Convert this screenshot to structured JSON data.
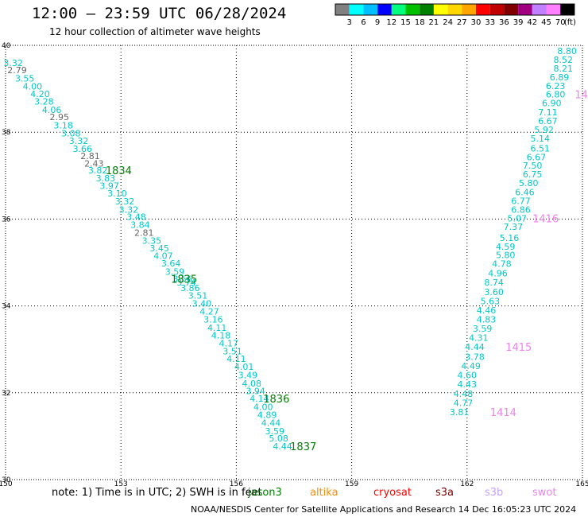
{
  "chart_data": {
    "type": "scatter",
    "title": "12:00 – 23:59 UTC 06/28/2024",
    "subtitle": "12 hour collection of altimeter wave heights",
    "xlim": [
      150,
      165
    ],
    "ylim": [
      30,
      40
    ],
    "x_ticks": [
      "150",
      "153",
      "156",
      "159",
      "162",
      "165"
    ],
    "y_ticks": [
      "30",
      "32",
      "34",
      "36",
      "38",
      "40"
    ],
    "grid": true,
    "colorbar": {
      "unit": "(ft)",
      "labels": [
        "3",
        "6",
        "9",
        "12",
        "15",
        "18",
        "21",
        "24",
        "27",
        "30",
        "33",
        "36",
        "39",
        "42",
        "45",
        "70"
      ],
      "colors": [
        "#808080",
        "#00ffff",
        "#00bfff",
        "#0000ff",
        "#00ff7f",
        "#00c000",
        "#008000",
        "#ffff00",
        "#ffd700",
        "#ffa500",
        "#ff0000",
        "#c00000",
        "#800000",
        "#a00080",
        "#c080ff",
        "#ff80ff",
        "#000000"
      ]
    },
    "series": [
      {
        "name": "jason3",
        "color_main": "#00c8c8",
        "color_low": "#666666",
        "points": [
          {
            "x": 150.2,
            "y": 39.6,
            "v": "3.32"
          },
          {
            "x": 150.3,
            "y": 39.43,
            "v": "2.79"
          },
          {
            "x": 150.5,
            "y": 39.24,
            "v": "3.55"
          },
          {
            "x": 150.7,
            "y": 39.06,
            "v": "4.00"
          },
          {
            "x": 150.9,
            "y": 38.88,
            "v": "4.20"
          },
          {
            "x": 151.0,
            "y": 38.71,
            "v": "3.28"
          },
          {
            "x": 151.2,
            "y": 38.52,
            "v": "4.06"
          },
          {
            "x": 151.4,
            "y": 38.35,
            "v": "2.95"
          },
          {
            "x": 151.5,
            "y": 38.16,
            "v": "3.18"
          },
          {
            "x": 151.7,
            "y": 37.98,
            "v": "3.08"
          },
          {
            "x": 151.9,
            "y": 37.8,
            "v": "3.32"
          },
          {
            "x": 152.0,
            "y": 37.62,
            "v": "3.66"
          },
          {
            "x": 152.2,
            "y": 37.45,
            "v": "2.81"
          },
          {
            "x": 152.3,
            "y": 37.28,
            "v": "2.43"
          },
          {
            "x": 152.4,
            "y": 37.12,
            "v": "3.82"
          },
          {
            "x": 152.6,
            "y": 36.94,
            "v": "3.83"
          },
          {
            "x": 152.7,
            "y": 36.77,
            "v": "3.97"
          },
          {
            "x": 152.9,
            "y": 36.59,
            "v": "3.10"
          },
          {
            "x": 153.1,
            "y": 36.41,
            "v": "3.32"
          },
          {
            "x": 153.2,
            "y": 36.22,
            "v": "3.32"
          },
          {
            "x": 153.4,
            "y": 36.05,
            "v": "3.48"
          },
          {
            "x": 153.5,
            "y": 35.87,
            "v": "3.84"
          },
          {
            "x": 153.6,
            "y": 35.69,
            "v": "2.81"
          },
          {
            "x": 153.8,
            "y": 35.5,
            "v": "3.35"
          },
          {
            "x": 154.0,
            "y": 35.33,
            "v": "3.45"
          },
          {
            "x": 154.1,
            "y": 35.16,
            "v": "4.07"
          },
          {
            "x": 154.3,
            "y": 34.98,
            "v": "3.64"
          },
          {
            "x": 154.4,
            "y": 34.79,
            "v": "3.59"
          },
          {
            "x": 154.6,
            "y": 34.62,
            "v": "3.56"
          },
          {
            "x": 154.7,
            "y": 34.54,
            "v": "3.74"
          },
          {
            "x": 154.8,
            "y": 34.41,
            "v": "3.86"
          },
          {
            "x": 155.0,
            "y": 34.24,
            "v": "3.51"
          },
          {
            "x": 155.1,
            "y": 34.06,
            "v": "3.40"
          },
          {
            "x": 155.3,
            "y": 33.87,
            "v": "4.27"
          },
          {
            "x": 155.4,
            "y": 33.69,
            "v": "3.16"
          },
          {
            "x": 155.5,
            "y": 33.5,
            "v": "4.11"
          },
          {
            "x": 155.6,
            "y": 33.32,
            "v": "4.18"
          },
          {
            "x": 155.8,
            "y": 33.14,
            "v": "4.17"
          },
          {
            "x": 155.9,
            "y": 32.96,
            "v": "3.51"
          },
          {
            "x": 156.0,
            "y": 32.78,
            "v": "4.11"
          },
          {
            "x": 156.2,
            "y": 32.6,
            "v": "4.01"
          },
          {
            "x": 156.3,
            "y": 32.41,
            "v": "3.49"
          },
          {
            "x": 156.4,
            "y": 32.22,
            "v": "4.08"
          },
          {
            "x": 156.5,
            "y": 32.04,
            "v": "3.94"
          },
          {
            "x": 156.6,
            "y": 31.87,
            "v": "4.14"
          },
          {
            "x": 156.7,
            "y": 31.68,
            "v": "4.00"
          },
          {
            "x": 156.8,
            "y": 31.49,
            "v": "4.89"
          },
          {
            "x": 156.9,
            "y": 31.31,
            "v": "4.44"
          },
          {
            "x": 157.0,
            "y": 31.12,
            "v": "3.59"
          },
          {
            "x": 157.1,
            "y": 30.95,
            "v": "5.08"
          },
          {
            "x": 157.2,
            "y": 30.77,
            "v": "4.44"
          }
        ]
      },
      {
        "name": "swot",
        "color_main": "#00c8c8",
        "color_low": "#666666",
        "points": [
          {
            "x": 164.6,
            "y": 39.87,
            "v": "8.80"
          },
          {
            "x": 164.5,
            "y": 39.67,
            "v": "8.52"
          },
          {
            "x": 164.5,
            "y": 39.47,
            "v": "8.21"
          },
          {
            "x": 164.4,
            "y": 39.27,
            "v": "6.89"
          },
          {
            "x": 164.3,
            "y": 39.07,
            "v": "6.23"
          },
          {
            "x": 164.3,
            "y": 38.87,
            "v": "6.80"
          },
          {
            "x": 164.2,
            "y": 38.67,
            "v": "6.90"
          },
          {
            "x": 164.1,
            "y": 38.46,
            "v": "7.11"
          },
          {
            "x": 164.1,
            "y": 38.26,
            "v": "6.67"
          },
          {
            "x": 164.0,
            "y": 38.06,
            "v": "5.92"
          },
          {
            "x": 163.9,
            "y": 37.86,
            "v": "5.14"
          },
          {
            "x": 163.9,
            "y": 37.63,
            "v": "6.51"
          },
          {
            "x": 163.8,
            "y": 37.43,
            "v": "6.67"
          },
          {
            "x": 163.7,
            "y": 37.23,
            "v": "7.50"
          },
          {
            "x": 163.7,
            "y": 37.03,
            "v": "6.75"
          },
          {
            "x": 163.6,
            "y": 36.83,
            "v": "5.80"
          },
          {
            "x": 163.5,
            "y": 36.62,
            "v": "6.46"
          },
          {
            "x": 163.4,
            "y": 36.42,
            "v": "6.77"
          },
          {
            "x": 163.4,
            "y": 36.22,
            "v": "6.86"
          },
          {
            "x": 163.3,
            "y": 36.02,
            "v": "5.07"
          },
          {
            "x": 163.2,
            "y": 35.82,
            "v": "7.37"
          },
          {
            "x": 163.1,
            "y": 35.57,
            "v": "5.16"
          },
          {
            "x": 163.0,
            "y": 35.37,
            "v": "4.59"
          },
          {
            "x": 163.0,
            "y": 35.17,
            "v": "5.80"
          },
          {
            "x": 162.9,
            "y": 34.97,
            "v": "4.78"
          },
          {
            "x": 162.8,
            "y": 34.75,
            "v": "4.96"
          },
          {
            "x": 162.7,
            "y": 34.54,
            "v": "8.74"
          },
          {
            "x": 162.7,
            "y": 34.32,
            "v": "3.60"
          },
          {
            "x": 162.6,
            "y": 34.11,
            "v": "5.63"
          },
          {
            "x": 162.5,
            "y": 33.9,
            "v": "4.46"
          },
          {
            "x": 162.5,
            "y": 33.69,
            "v": "4.83"
          },
          {
            "x": 162.4,
            "y": 33.48,
            "v": "3.59"
          },
          {
            "x": 162.3,
            "y": 33.27,
            "v": "4.31"
          },
          {
            "x": 162.2,
            "y": 33.06,
            "v": "4.44"
          },
          {
            "x": 162.2,
            "y": 32.83,
            "v": "3.78"
          },
          {
            "x": 162.1,
            "y": 32.62,
            "v": "4.49"
          },
          {
            "x": 162.0,
            "y": 32.41,
            "v": "4.60"
          },
          {
            "x": 162.0,
            "y": 32.2,
            "v": "4.43"
          },
          {
            "x": 161.9,
            "y": 31.98,
            "v": "4.48"
          },
          {
            "x": 161.9,
            "y": 31.77,
            "v": "4.77"
          },
          {
            "x": 161.8,
            "y": 31.56,
            "v": "3.81"
          }
        ]
      }
    ],
    "annotations": [
      {
        "x": 152.6,
        "y": 37.12,
        "text": "1834",
        "color": "#008000"
      },
      {
        "x": 154.3,
        "y": 34.62,
        "text": "1835",
        "color": "#008000"
      },
      {
        "x": 156.7,
        "y": 31.87,
        "text": "1836",
        "color": "#008000"
      },
      {
        "x": 157.4,
        "y": 30.77,
        "text": "1837",
        "color": "#008000"
      },
      {
        "x": 164.8,
        "y": 38.87,
        "text": "14",
        "color": "#ee82ee"
      },
      {
        "x": 163.7,
        "y": 36.02,
        "text": "1416",
        "color": "#ee82ee"
      },
      {
        "x": 163.0,
        "y": 33.06,
        "text": "1415",
        "color": "#ee82ee"
      },
      {
        "x": 162.6,
        "y": 31.56,
        "text": "1414",
        "color": "#ee82ee"
      }
    ]
  },
  "note": "note:  1) Time is in UTC;  2) SWH is in feet",
  "satellites": [
    {
      "name": "jason3",
      "color": "#008000"
    },
    {
      "name": "altika",
      "color": "#ff8c00"
    },
    {
      "name": "cryosat",
      "color": "#ff0000"
    },
    {
      "name": "s3a",
      "color": "#800000"
    },
    {
      "name": "s3b",
      "color": "#c8a0ff"
    },
    {
      "name": "swot",
      "color": "#ee82ee"
    }
  ],
  "credit": "NOAA/NESDIS Center for Satellite Applications and Research    14 Dec 16:05:23 UTC 2024"
}
